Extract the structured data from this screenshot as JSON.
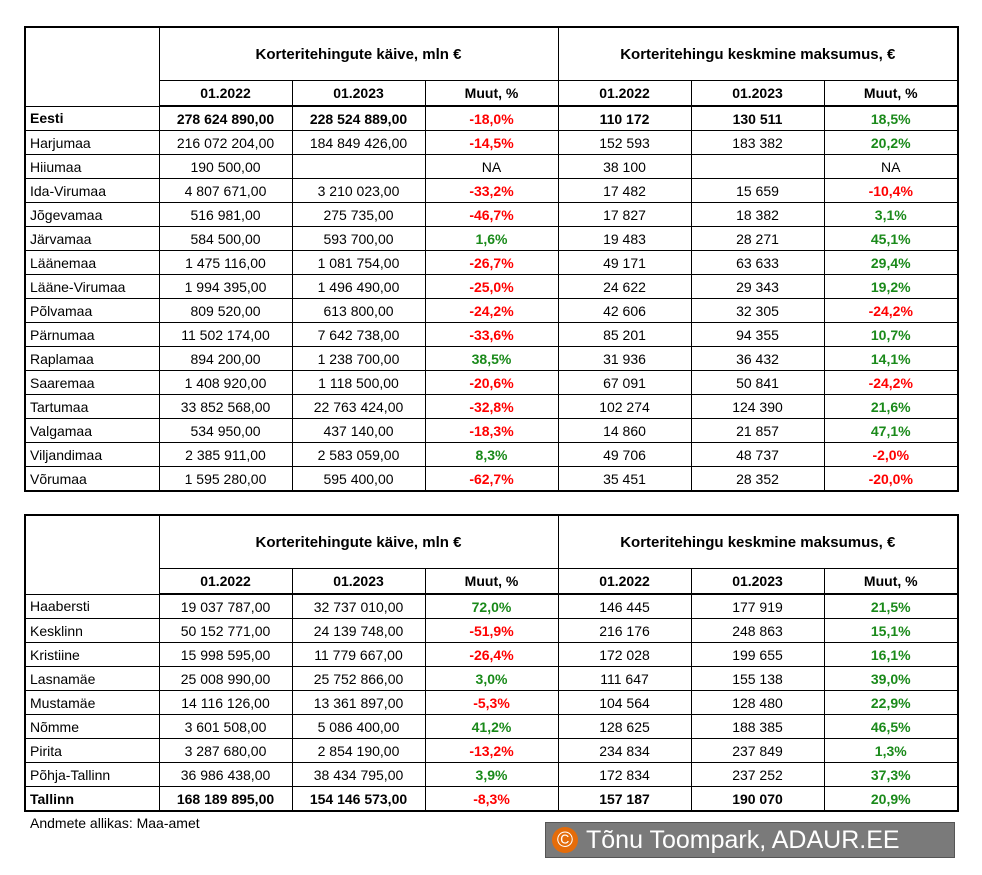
{
  "tables": [
    {
      "group_headers": [
        "Korteritehingute käive, mln €",
        "Korteritehingu keskmine maksumus, €"
      ],
      "column_headers": [
        "01.2022",
        "01.2023",
        "Muut, %",
        "01.2022",
        "01.2023",
        "Muut, %"
      ],
      "bold_rows": [
        0
      ],
      "rows": [
        [
          "Eesti",
          "278 624 890,00",
          "228 524 889,00",
          "-18,0%",
          "110 172",
          "130 511",
          "18,5%"
        ],
        [
          "Harjumaa",
          "216 072 204,00",
          "184 849 426,00",
          "-14,5%",
          "152 593",
          "183 382",
          "20,2%"
        ],
        [
          "Hiiumaa",
          "190 500,00",
          null,
          "NA",
          "38 100",
          null,
          "NA"
        ],
        [
          "Ida-Virumaa",
          "4 807 671,00",
          "3 210 023,00",
          "-33,2%",
          "17 482",
          "15 659",
          "-10,4%"
        ],
        [
          "Jõgevamaa",
          "516 981,00",
          "275 735,00",
          "-46,7%",
          "17 827",
          "18 382",
          "3,1%"
        ],
        [
          "Järvamaa",
          "584 500,00",
          "593 700,00",
          "1,6%",
          "19 483",
          "28 271",
          "45,1%"
        ],
        [
          "Läänemaa",
          "1 475 116,00",
          "1 081 754,00",
          "-26,7%",
          "49 171",
          "63 633",
          "29,4%"
        ],
        [
          "Lääne-Virumaa",
          "1 994 395,00",
          "1 496 490,00",
          "-25,0%",
          "24 622",
          "29 343",
          "19,2%"
        ],
        [
          "Põlvamaa",
          "809 520,00",
          "613 800,00",
          "-24,2%",
          "42 606",
          "32 305",
          "-24,2%"
        ],
        [
          "Pärnumaa",
          "11 502 174,00",
          "7 642 738,00",
          "-33,6%",
          "85 201",
          "94 355",
          "10,7%"
        ],
        [
          "Raplamaa",
          "894 200,00",
          "1 238 700,00",
          "38,5%",
          "31 936",
          "36 432",
          "14,1%"
        ],
        [
          "Saaremaa",
          "1 408 920,00",
          "1 118 500,00",
          "-20,6%",
          "67 091",
          "50 841",
          "-24,2%"
        ],
        [
          "Tartumaa",
          "33 852 568,00",
          "22 763 424,00",
          "-32,8%",
          "102 274",
          "124 390",
          "21,6%"
        ],
        [
          "Valgamaa",
          "534 950,00",
          "437 140,00",
          "-18,3%",
          "14 860",
          "21 857",
          "47,1%"
        ],
        [
          "Viljandimaa",
          "2 385 911,00",
          "2 583 059,00",
          "8,3%",
          "49 706",
          "48 737",
          "-2,0%"
        ],
        [
          "Võrumaa",
          "1 595 280,00",
          "595 400,00",
          "-62,7%",
          "35 451",
          "28 352",
          "-20,0%"
        ]
      ]
    },
    {
      "group_headers": [
        "Korteritehingute käive, mln €",
        "Korteritehingu keskmine maksumus, €"
      ],
      "column_headers": [
        "01.2022",
        "01.2023",
        "Muut, %",
        "01.2022",
        "01.2023",
        "Muut, %"
      ],
      "bold_rows": [
        8
      ],
      "rows": [
        [
          "Haabersti",
          "19 037 787,00",
          "32 737 010,00",
          "72,0%",
          "146 445",
          "177 919",
          "21,5%"
        ],
        [
          "Kesklinn",
          "50 152 771,00",
          "24 139 748,00",
          "-51,9%",
          "216 176",
          "248 863",
          "15,1%"
        ],
        [
          "Kristiine",
          "15 998 595,00",
          "11 779 667,00",
          "-26,4%",
          "172 028",
          "199 655",
          "16,1%"
        ],
        [
          "Lasnamäe",
          "25 008 990,00",
          "25 752 866,00",
          "3,0%",
          "111 647",
          "155 138",
          "39,0%"
        ],
        [
          "Mustamäe",
          "14 116 126,00",
          "13 361 897,00",
          "-5,3%",
          "104 564",
          "128 480",
          "22,9%"
        ],
        [
          "Nõmme",
          "3 601 508,00",
          "5 086 400,00",
          "41,2%",
          "128 625",
          "188 385",
          "46,5%"
        ],
        [
          "Pirita",
          "3 287 680,00",
          "2 854 190,00",
          "-13,2%",
          "234 834",
          "237 849",
          "1,3%"
        ],
        [
          "Põhja-Tallinn",
          "36 986 438,00",
          "38 434 795,00",
          "3,9%",
          "172 834",
          "237 252",
          "37,3%"
        ],
        [
          "Tallinn",
          "168 189 895,00",
          "154 146 573,00",
          "-8,3%",
          "157 187",
          "190 070",
          "20,9%"
        ]
      ]
    }
  ],
  "source": "Andmete allikas: Maa-amet",
  "watermark": {
    "symbol": "©",
    "text": "Tõnu Toompark, ADAUR.EE"
  }
}
